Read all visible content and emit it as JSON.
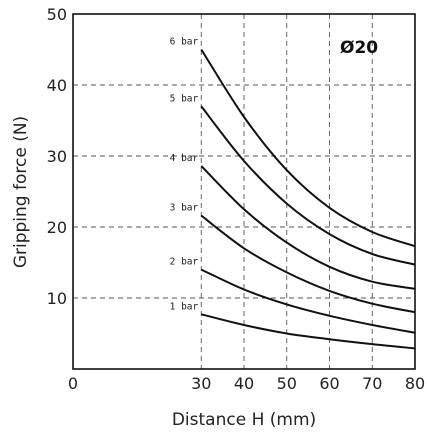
{
  "chart_data": {
    "type": "line",
    "annotation": "Ø20",
    "xlabel": "Distance H (mm)",
    "ylabel": "Gripping force (N)",
    "xlim": [
      0,
      80
    ],
    "ylim": [
      0,
      50
    ],
    "x_ticks": [
      "0",
      "30",
      "40",
      "50",
      "60",
      "70",
      "80"
    ],
    "y_ticks": [
      "10",
      "20",
      "30",
      "40",
      "50"
    ],
    "grid": true,
    "x": [
      30,
      40,
      50,
      60,
      70,
      80
    ],
    "series": [
      {
        "name": "1 bar",
        "values": [
          7.7,
          6.2,
          5.0,
          4.2,
          3.5,
          2.9
        ]
      },
      {
        "name": "2 bar",
        "values": [
          14.0,
          11.2,
          9.1,
          7.5,
          6.2,
          5.1
        ]
      },
      {
        "name": "3 bar",
        "values": [
          21.6,
          17.0,
          13.6,
          11.0,
          9.2,
          8.0
        ]
      },
      {
        "name": "4 bar",
        "values": [
          28.6,
          22.5,
          17.8,
          14.4,
          12.3,
          11.3
        ]
      },
      {
        "name": "5 bar",
        "values": [
          37.0,
          29.3,
          23.3,
          19.0,
          16.2,
          14.7
        ]
      },
      {
        "name": "6 bar",
        "values": [
          45.0,
          35.5,
          28.0,
          22.7,
          19.3,
          17.3
        ]
      }
    ]
  }
}
